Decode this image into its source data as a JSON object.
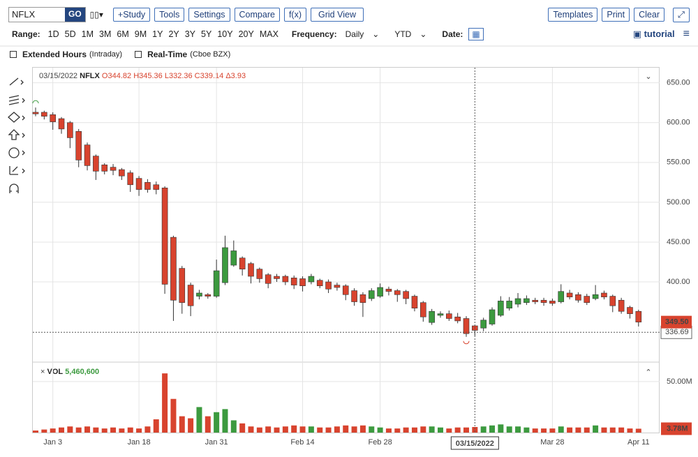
{
  "toolbar": {
    "symbol": "NFLX",
    "go": "GO",
    "left_buttons": [
      "+Study",
      "Tools",
      "Settings",
      "Compare",
      "f(x)",
      "Grid View"
    ],
    "right_buttons": [
      "Templates",
      "Print",
      "Clear"
    ]
  },
  "range_bar": {
    "range_label": "Range:",
    "ranges": [
      "1D",
      "5D",
      "1M",
      "3M",
      "6M",
      "9M",
      "1Y",
      "2Y",
      "3Y",
      "5Y",
      "10Y",
      "20Y",
      "MAX"
    ],
    "frequency_label": "Frequency:",
    "frequency": "Daily",
    "period": "YTD",
    "date_label": "Date:",
    "tutorial": "tutorial"
  },
  "options": {
    "extended_hours": "Extended Hours",
    "extended_hours_note": "(Intraday)",
    "real_time": "Real-Time",
    "real_time_note": "(Cboe BZX)"
  },
  "chart_data": {
    "type": "candlestick",
    "header": {
      "date": "03/15/2022",
      "symbol": "NFLX",
      "open": "O344.82",
      "high": "H345.36",
      "low": "L332.36",
      "close": "C339.14",
      "change": "Δ3.93"
    },
    "up_color": "#3c9a3f",
    "down_color": "#d8432e",
    "categories": [
      null,
      null,
      "Jan 3",
      null,
      null,
      null,
      null,
      null,
      null,
      null,
      null,
      null,
      "Jan 18",
      null,
      null,
      null,
      null,
      null,
      null,
      null,
      null,
      "Jan 31",
      null,
      null,
      null,
      null,
      null,
      null,
      null,
      null,
      null,
      "Feb 14",
      null,
      null,
      null,
      null,
      null,
      null,
      null,
      null,
      "Feb 28",
      null,
      null,
      null,
      null,
      null,
      null,
      null,
      null,
      null,
      null,
      null,
      null,
      null,
      null,
      null,
      null,
      null,
      null,
      null,
      "Mar 28",
      null,
      null,
      null,
      null,
      null,
      null,
      null,
      null,
      null,
      "Apr 11"
    ],
    "open": [
      613,
      613,
      610,
      605,
      600,
      589,
      572,
      558,
      547,
      544,
      541,
      537,
      530,
      525,
      522,
      518,
      456,
      417,
      396,
      382,
      384,
      382,
      399,
      421,
      430,
      423,
      416,
      409,
      407,
      407,
      405,
      404,
      400,
      402,
      400,
      396,
      395,
      389,
      384,
      379,
      382,
      391,
      389,
      388,
      382,
      374,
      349,
      358,
      360,
      356,
      354,
      344.82,
      342,
      347,
      358,
      367,
      372,
      374,
      377,
      377,
      376,
      375,
      386,
      384,
      382,
      379,
      386,
      382,
      377,
      368,
      363
    ],
    "high": [
      619,
      615,
      613,
      607,
      602,
      592,
      575,
      560,
      549,
      548,
      543,
      540,
      533,
      529,
      526,
      520,
      458,
      420,
      399,
      390,
      386,
      428,
      458,
      452,
      432,
      425,
      418,
      411,
      410,
      409,
      408,
      407,
      410,
      404,
      403,
      399,
      397,
      392,
      387,
      392,
      398,
      394,
      391,
      390,
      384,
      376,
      366,
      363,
      364,
      361,
      357,
      345.36,
      355,
      368,
      382,
      381,
      386,
      383,
      380,
      380,
      379,
      397,
      390,
      387,
      385,
      396,
      389,
      384,
      380,
      370,
      365
    ],
    "low": [
      608,
      604,
      591,
      586,
      568,
      544,
      540,
      528,
      535,
      534,
      528,
      513,
      508,
      512,
      510,
      385,
      351,
      360,
      357,
      378,
      379,
      380,
      396,
      419,
      408,
      398,
      399,
      392,
      400,
      396,
      391,
      388,
      397,
      392,
      386,
      389,
      377,
      370,
      356,
      376,
      380,
      383,
      375,
      372,
      363,
      350,
      346,
      355,
      351,
      348,
      331,
      332.36,
      338,
      345,
      356,
      364,
      368,
      371,
      372,
      370,
      370,
      373,
      378,
      374,
      371,
      377,
      378,
      362,
      360,
      354,
      344
    ],
    "close": [
      611,
      608,
      601,
      592,
      581,
      553,
      546,
      539,
      539,
      540,
      533,
      522,
      516,
      516,
      516,
      397,
      377,
      374,
      370,
      386,
      382,
      414,
      443,
      439,
      416,
      407,
      404,
      398,
      404,
      400,
      396,
      395,
      407,
      395,
      391,
      393,
      384,
      375,
      374,
      389,
      393,
      388,
      384,
      379,
      367,
      356,
      363,
      360,
      354,
      351,
      335,
      339.14,
      352,
      365,
      376,
      376,
      379,
      379,
      375,
      374,
      373,
      388,
      381,
      377,
      374,
      384,
      381,
      370,
      363,
      360,
      349.5
    ],
    "ylim": [
      301,
      669
    ],
    "yticks": [
      {
        "value": 400,
        "label": "400.00"
      },
      {
        "value": 450,
        "label": "450.00"
      },
      {
        "value": 500,
        "label": "500.00"
      },
      {
        "value": 550,
        "label": "550.00"
      },
      {
        "value": 600,
        "label": "600.00"
      },
      {
        "value": 650,
        "label": "650.00"
      }
    ],
    "last_price": {
      "value": 349.5,
      "label": "349.50"
    },
    "crosshair_price": {
      "value": 336.69,
      "label": "336.69"
    },
    "volume": {
      "title": "VOL",
      "current": "5,460,600",
      "values": [
        2000000,
        3000000,
        4000000,
        5000000,
        6000000,
        5000000,
        6000000,
        5000000,
        4000000,
        5000000,
        4000000,
        5000000,
        4000000,
        6000000,
        13000000,
        58000000,
        33000000,
        16000000,
        14000000,
        25000000,
        16000000,
        20000000,
        23000000,
        12000000,
        9000000,
        6000000,
        5000000,
        6000000,
        5000000,
        6000000,
        7000000,
        6000000,
        6000000,
        5000000,
        5000000,
        6000000,
        7000000,
        6000000,
        7000000,
        6000000,
        5000000,
        4000000,
        4000000,
        5000000,
        5000000,
        6000000,
        6000000,
        5000000,
        4000000,
        5000000,
        5000000,
        5460600,
        6000000,
        7000000,
        8000000,
        6000000,
        6000000,
        5000000,
        4000000,
        4000000,
        4000000,
        6000000,
        5000000,
        5000000,
        5000000,
        7000000,
        5000000,
        5000000,
        5000000,
        4000000,
        3780000
      ],
      "ylim": [
        0,
        67000000
      ],
      "yticks": [
        {
          "value": 50000000,
          "label": "50.00M"
        }
      ],
      "last": {
        "value": 3780000,
        "label": "3.78M"
      }
    }
  }
}
